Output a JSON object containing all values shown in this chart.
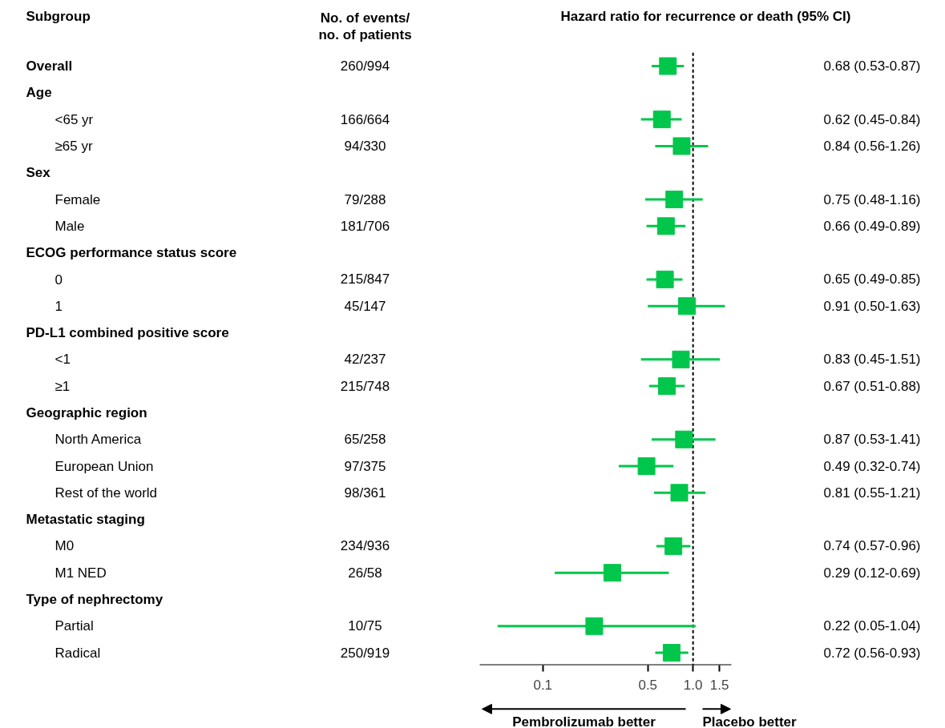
{
  "chart_data": {
    "type": "scatter",
    "orientation": "horizontal",
    "log": "x",
    "marker": "square",
    "title": "Hazard ratio for recurrence or death (95% CI)",
    "y_categories": [
      "Overall",
      "Age",
      "<65 yr",
      "≥65 yr",
      "Sex",
      "Female",
      "Male",
      "ECOG performance status score",
      "0",
      "1",
      "PD-L1 combined positive score",
      "<1",
      "≥1",
      "Geographic region",
      "North America",
      "European Union",
      "Rest of the world",
      "Metastatic staging",
      "M0",
      "M1 NED",
      "Type of nephrectomy",
      "Partial",
      "Radical"
    ],
    "y2_categories": [
      "260/994",
      null,
      "166/664",
      "94/330",
      null,
      "79/288",
      "181/706",
      null,
      "215/847",
      "45/147",
      null,
      "42/237",
      "215/748",
      null,
      "65/258",
      "97/375",
      "98/361",
      null,
      "234/936",
      "26/58",
      null,
      "10/75",
      "250/919"
    ],
    "values": [
      0.68,
      null,
      0.62,
      0.84,
      null,
      0.75,
      0.66,
      null,
      0.65,
      0.91,
      null,
      0.83,
      0.67,
      null,
      0.87,
      0.49,
      0.81,
      null,
      0.74,
      0.29,
      null,
      0.22,
      0.72
    ],
    "errors": [
      [
        0.53,
        0.87
      ],
      null,
      [
        0.45,
        0.84
      ],
      [
        0.56,
        1.26
      ],
      null,
      [
        0.48,
        1.16
      ],
      [
        0.49,
        0.89
      ],
      null,
      [
        0.49,
        0.85
      ],
      [
        0.5,
        1.63
      ],
      null,
      [
        0.45,
        1.51
      ],
      [
        0.51,
        0.88
      ],
      null,
      [
        0.53,
        1.41
      ],
      [
        0.32,
        0.74
      ],
      [
        0.55,
        1.21
      ],
      null,
      [
        0.57,
        0.96
      ],
      [
        0.12,
        0.69
      ],
      null,
      [
        0.05,
        1.04
      ],
      [
        0.56,
        0.93
      ]
    ],
    "value_labels": [
      "0.68 (0.53-0.87)",
      null,
      "0.62 (0.45-0.84)",
      "0.84 (0.56-1.26)",
      null,
      "0.75 (0.48-1.16)",
      "0.66 (0.49-0.89)",
      null,
      "0.65 (0.49-0.85)",
      "0.91 (0.50-1.63)",
      null,
      "0.83 (0.45-1.51)",
      "0.67 (0.51-0.88)",
      null,
      "0.87 (0.53-1.41)",
      "0.49 (0.32-0.74)",
      "0.81 (0.55-1.21)",
      null,
      "0.74 (0.57-0.96)",
      "0.29 (0.12-0.69)",
      null,
      "0.22 (0.05-1.04)",
      "0.72 (0.56-0.93)"
    ],
    "color": "#00c64b",
    "xlim": [
      0.038,
      1.8
    ],
    "xticks": [
      0.1,
      0.5,
      {
        "value": 1.0,
        "label": "1.0"
      },
      1.5
    ],
    "ref_lines": [
      {
        "axis": "x",
        "value": 1.0,
        "color": "#000000",
        "line_style": "dashed"
      }
    ],
    "grid": false,
    "legend": false,
    "annotations": [
      "Subgroup",
      "No. of events/\nno. of patients",
      "Pembrolizumab better",
      "Placebo better"
    ]
  }
}
